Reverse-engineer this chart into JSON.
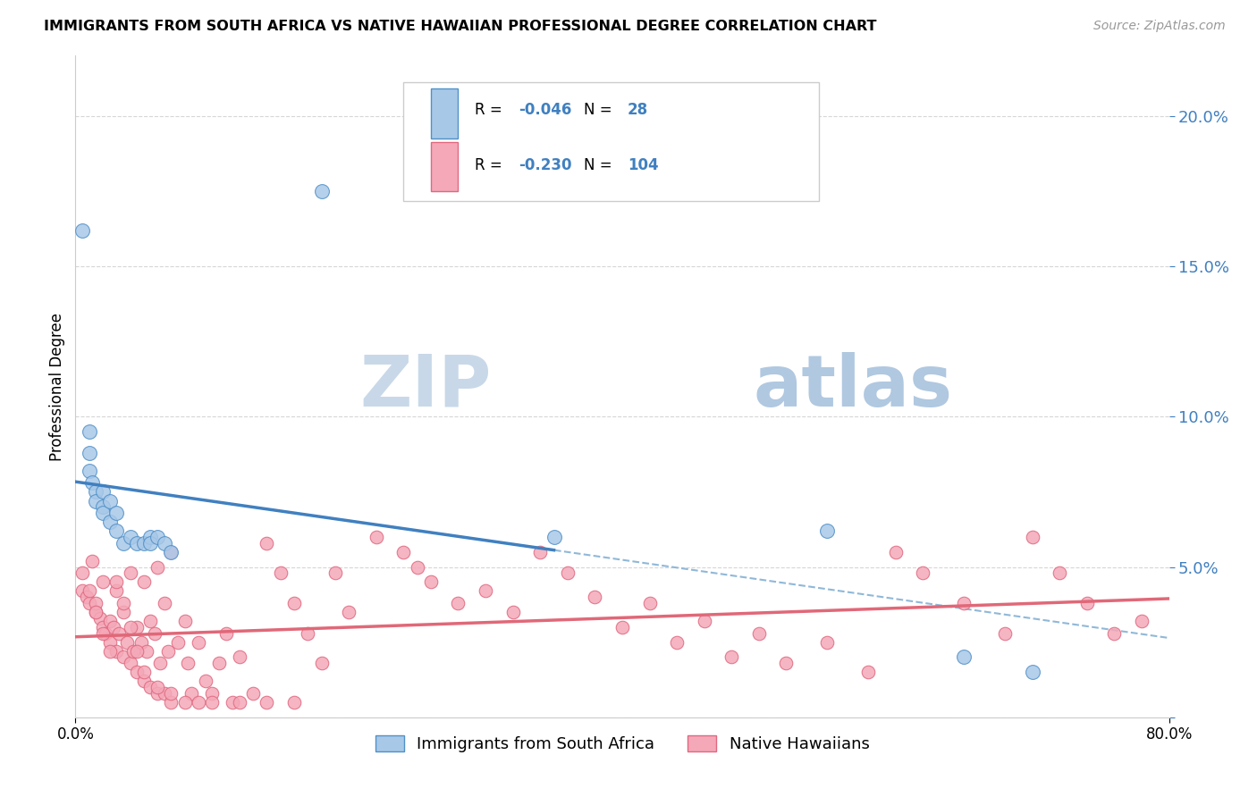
{
  "title": "IMMIGRANTS FROM SOUTH AFRICA VS NATIVE HAWAIIAN PROFESSIONAL DEGREE CORRELATION CHART",
  "source": "Source: ZipAtlas.com",
  "ylabel": "Professional Degree",
  "xlim": [
    0.0,
    0.8
  ],
  "ylim": [
    0.0,
    0.22
  ],
  "yticks": [
    0.0,
    0.05,
    0.1,
    0.15,
    0.2
  ],
  "ytick_labels": [
    "",
    "5.0%",
    "10.0%",
    "15.0%",
    "20.0%"
  ],
  "blue_R": -0.046,
  "blue_N": 28,
  "pink_R": -0.23,
  "pink_N": 104,
  "blue_color": "#a8c8e8",
  "pink_color": "#f4a8b8",
  "blue_edge_color": "#5090c8",
  "pink_edge_color": "#e06880",
  "blue_line_color": "#4080c0",
  "pink_line_color": "#e06878",
  "dashed_line_color": "#90b8d8",
  "text_blue_color": "#4080c0",
  "watermark_zip_color": "#c8d8e8",
  "watermark_atlas_color": "#b0c8e0",
  "background_color": "#ffffff",
  "grid_color": "#cccccc",
  "blue_scatter_x": [
    0.005,
    0.01,
    0.01,
    0.01,
    0.012,
    0.015,
    0.015,
    0.02,
    0.02,
    0.02,
    0.025,
    0.025,
    0.03,
    0.03,
    0.035,
    0.04,
    0.045,
    0.05,
    0.055,
    0.055,
    0.06,
    0.065,
    0.07,
    0.18,
    0.35,
    0.55,
    0.65,
    0.7
  ],
  "blue_scatter_y": [
    0.162,
    0.095,
    0.088,
    0.082,
    0.078,
    0.075,
    0.072,
    0.075,
    0.07,
    0.068,
    0.072,
    0.065,
    0.068,
    0.062,
    0.058,
    0.06,
    0.058,
    0.058,
    0.06,
    0.058,
    0.06,
    0.058,
    0.055,
    0.175,
    0.06,
    0.062,
    0.02,
    0.015
  ],
  "pink_scatter_x": [
    0.005,
    0.008,
    0.01,
    0.012,
    0.015,
    0.015,
    0.018,
    0.02,
    0.02,
    0.022,
    0.025,
    0.025,
    0.028,
    0.03,
    0.03,
    0.032,
    0.035,
    0.035,
    0.038,
    0.04,
    0.04,
    0.042,
    0.045,
    0.045,
    0.048,
    0.05,
    0.05,
    0.052,
    0.055,
    0.055,
    0.058,
    0.06,
    0.06,
    0.062,
    0.065,
    0.065,
    0.068,
    0.07,
    0.07,
    0.075,
    0.08,
    0.082,
    0.085,
    0.09,
    0.095,
    0.1,
    0.105,
    0.11,
    0.115,
    0.12,
    0.13,
    0.14,
    0.15,
    0.16,
    0.17,
    0.18,
    0.19,
    0.2,
    0.22,
    0.24,
    0.25,
    0.26,
    0.28,
    0.3,
    0.32,
    0.34,
    0.36,
    0.38,
    0.4,
    0.42,
    0.44,
    0.46,
    0.48,
    0.5,
    0.52,
    0.55,
    0.58,
    0.6,
    0.62,
    0.65,
    0.68,
    0.7,
    0.72,
    0.74,
    0.76,
    0.78,
    0.005,
    0.01,
    0.015,
    0.02,
    0.025,
    0.03,
    0.035,
    0.04,
    0.045,
    0.05,
    0.06,
    0.07,
    0.08,
    0.09,
    0.1,
    0.12,
    0.14,
    0.16
  ],
  "pink_scatter_y": [
    0.042,
    0.04,
    0.038,
    0.052,
    0.035,
    0.038,
    0.033,
    0.03,
    0.045,
    0.028,
    0.032,
    0.025,
    0.03,
    0.042,
    0.022,
    0.028,
    0.035,
    0.02,
    0.025,
    0.048,
    0.018,
    0.022,
    0.03,
    0.015,
    0.025,
    0.045,
    0.012,
    0.022,
    0.032,
    0.01,
    0.028,
    0.05,
    0.008,
    0.018,
    0.038,
    0.008,
    0.022,
    0.055,
    0.005,
    0.025,
    0.032,
    0.018,
    0.008,
    0.025,
    0.012,
    0.008,
    0.018,
    0.028,
    0.005,
    0.02,
    0.008,
    0.058,
    0.048,
    0.038,
    0.028,
    0.018,
    0.048,
    0.035,
    0.06,
    0.055,
    0.05,
    0.045,
    0.038,
    0.042,
    0.035,
    0.055,
    0.048,
    0.04,
    0.03,
    0.038,
    0.025,
    0.032,
    0.02,
    0.028,
    0.018,
    0.025,
    0.015,
    0.055,
    0.048,
    0.038,
    0.028,
    0.06,
    0.048,
    0.038,
    0.028,
    0.032,
    0.048,
    0.042,
    0.035,
    0.028,
    0.022,
    0.045,
    0.038,
    0.03,
    0.022,
    0.015,
    0.01,
    0.008,
    0.005,
    0.005,
    0.005,
    0.005,
    0.005,
    0.005
  ]
}
